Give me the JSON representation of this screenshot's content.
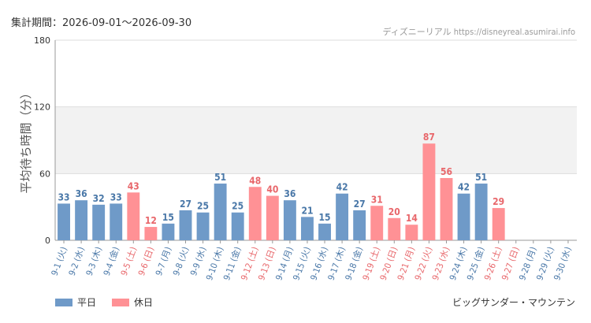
{
  "header": {
    "period_label": "集計期間：2026-09-01〜2026-09-30",
    "credit": "ディズニーリアル https://disneyreal.asumirai.info"
  },
  "footer": {
    "subject": "ビッグサンダー・マウンテン"
  },
  "colors": {
    "weekday": "#6f9ac8",
    "holiday": "#ff9195",
    "weekday_label": "#4a78a8",
    "holiday_label": "#e8676b",
    "band": "#f2f2f2",
    "grid": "#dddddd"
  },
  "chart_data": {
    "type": "bar",
    "ylabel": "平均待ち時間（分）",
    "ylim": [
      0,
      180
    ],
    "yticks": [
      0,
      60,
      120,
      180
    ],
    "band": [
      60,
      120
    ],
    "categories": [
      "9-1 (火)",
      "9-2 (水)",
      "9-3 (木)",
      "9-4 (金)",
      "9-5 (土)",
      "9-6 (日)",
      "9-7 (月)",
      "9-8 (火)",
      "9-9 (水)",
      "9-10 (木)",
      "9-11 (金)",
      "9-12 (土)",
      "9-13 (日)",
      "9-14 (月)",
      "9-15 (火)",
      "9-16 (水)",
      "9-17 (木)",
      "9-18 (金)",
      "9-19 (土)",
      "9-20 (日)",
      "9-21 (月)",
      "9-22 (火)",
      "9-23 (水)",
      "9-24 (木)",
      "9-25 (金)",
      "9-26 (土)",
      "9-27 (日)",
      "9-28 (月)",
      "9-29 (火)",
      "9-30 (水)"
    ],
    "values": [
      33,
      36,
      32,
      33,
      43,
      12,
      15,
      27,
      25,
      51,
      25,
      48,
      40,
      36,
      21,
      15,
      42,
      27,
      31,
      20,
      14,
      87,
      56,
      42,
      51,
      29,
      null,
      null,
      null,
      null
    ],
    "day_type": [
      "weekday",
      "weekday",
      "weekday",
      "weekday",
      "holiday",
      "holiday",
      "weekday",
      "weekday",
      "weekday",
      "weekday",
      "weekday",
      "holiday",
      "holiday",
      "weekday",
      "weekday",
      "weekday",
      "weekday",
      "weekday",
      "holiday",
      "holiday",
      "holiday",
      "holiday",
      "holiday",
      "weekday",
      "weekday",
      "holiday",
      "holiday",
      "weekday",
      "weekday",
      "weekday"
    ],
    "legend": [
      {
        "key": "weekday",
        "label": "平日"
      },
      {
        "key": "holiday",
        "label": "休日"
      }
    ]
  }
}
